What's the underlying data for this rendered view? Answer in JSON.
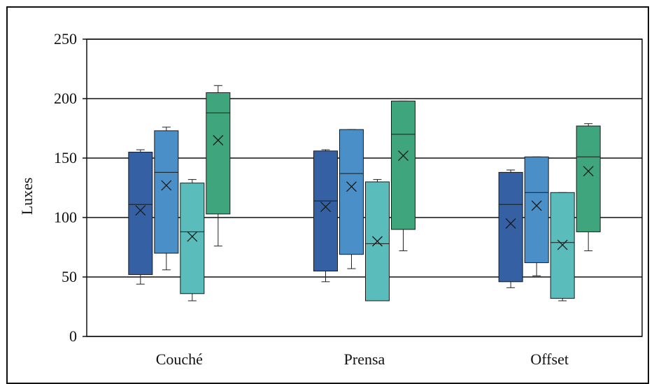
{
  "chart_data": {
    "type": "box",
    "title": "",
    "xlabel": "",
    "ylabel": "Luxes",
    "ylim": [
      0,
      250
    ],
    "yticks": [
      0,
      50,
      100,
      150,
      200,
      250
    ],
    "grid": true,
    "legend": "none",
    "categories": [
      "Couché",
      "Prensa",
      "Offset"
    ],
    "box_colors": [
      "#3560a3",
      "#4a8fc8",
      "#5bbcbc",
      "#3fa57c"
    ],
    "groups": [
      {
        "category": "Couché",
        "boxes": [
          {
            "min": 44,
            "q1": 52,
            "median": 111,
            "q3": 155,
            "max": 157,
            "mean": 106
          },
          {
            "min": 56,
            "q1": 70,
            "median": 138,
            "q3": 173,
            "max": 176,
            "mean": 127
          },
          {
            "min": 30,
            "q1": 36,
            "median": 88,
            "q3": 129,
            "max": 132,
            "mean": 84
          },
          {
            "min": 76,
            "q1": 103,
            "median": 188,
            "q3": 205,
            "max": 211,
            "mean": 165
          }
        ]
      },
      {
        "category": "Prensa",
        "boxes": [
          {
            "min": 46,
            "q1": 55,
            "median": 114,
            "q3": 156,
            "max": 157,
            "mean": 109
          },
          {
            "min": 57,
            "q1": 69,
            "median": 137,
            "q3": 174,
            "max": 174,
            "mean": 126
          },
          {
            "min": 30,
            "q1": 30,
            "median": 78,
            "q3": 130,
            "max": 132,
            "mean": 80
          },
          {
            "min": 72,
            "q1": 90,
            "median": 170,
            "q3": 198,
            "max": 198,
            "mean": 152
          }
        ]
      },
      {
        "category": "Offset",
        "boxes": [
          {
            "min": 41,
            "q1": 46,
            "median": 111,
            "q3": 138,
            "max": 140,
            "mean": 95
          },
          {
            "min": 51,
            "q1": 62,
            "median": 121,
            "q3": 151,
            "max": 151,
            "mean": 110
          },
          {
            "min": 30,
            "q1": 32,
            "median": 79,
            "q3": 121,
            "max": 121,
            "mean": 77
          },
          {
            "min": 72,
            "q1": 88,
            "median": 151,
            "q3": 177,
            "max": 179,
            "mean": 139
          }
        ]
      }
    ]
  }
}
